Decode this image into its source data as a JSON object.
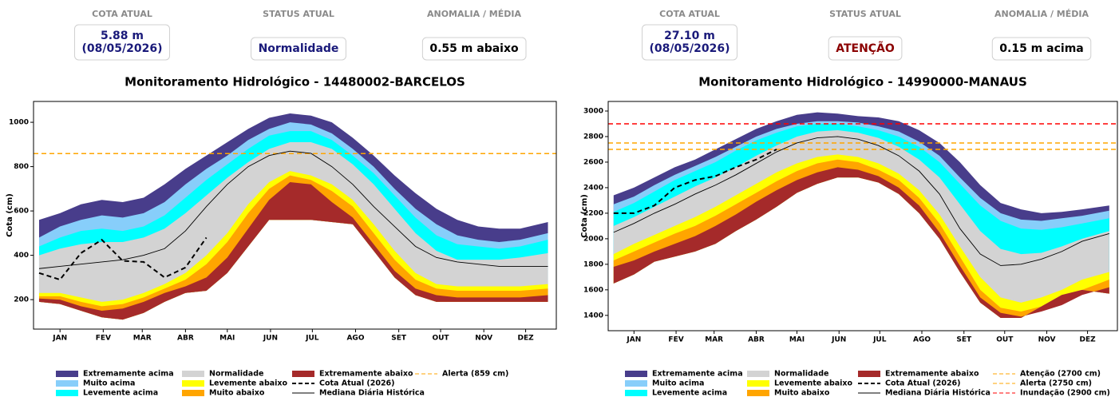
{
  "chart_data": [
    {
      "type": "area",
      "title": "Monitoramento Hidrológico - 14480002-BARCELOS",
      "cards": [
        {
          "label": "COTA ATUAL",
          "value": [
            "5.88 m",
            "(08/05/2026)"
          ],
          "color": "#1a1a7a"
        },
        {
          "label": "STATUS ATUAL",
          "value": [
            "Normalidade"
          ],
          "color": "#1a1a7a"
        },
        {
          "label": "ANOMALIA / MÉDIA",
          "value": [
            "0.55 m abaixo"
          ],
          "color": "#000000"
        }
      ],
      "ylabel": "Cota (cm)",
      "x": [
        0,
        15,
        30,
        45,
        60,
        75,
        90,
        105,
        120,
        135,
        150,
        165,
        180,
        195,
        210,
        225,
        240,
        255,
        270,
        285,
        300,
        315,
        330,
        345,
        365
      ],
      "xlim": [
        -4,
        371
      ],
      "xticks": [
        {
          "value": 15,
          "label": "JAN"
        },
        {
          "value": 46,
          "label": "FEV"
        },
        {
          "value": 74,
          "label": "MAR"
        },
        {
          "value": 105,
          "label": "ABR"
        },
        {
          "value": 135,
          "label": "MAI"
        },
        {
          "value": 166,
          "label": "JUN"
        },
        {
          "value": 196,
          "label": "JUL"
        },
        {
          "value": 227,
          "label": "AGO"
        },
        {
          "value": 258,
          "label": "SET"
        },
        {
          "value": 288,
          "label": "OUT"
        },
        {
          "value": 319,
          "label": "NOV"
        },
        {
          "value": 349,
          "label": "DEZ"
        }
      ],
      "ylim": [
        67,
        1094
      ],
      "yticks": [
        200,
        400,
        600,
        800,
        1000
      ],
      "min": [
        190,
        180,
        150,
        120,
        110,
        140,
        190,
        230,
        240,
        320,
        440,
        560,
        560,
        560,
        550,
        540,
        420,
        300,
        220,
        190,
        190,
        190,
        190,
        190,
        190
      ],
      "series": [
        {
          "name": "Extremamente acima",
          "color": "#483d8b",
          "values": [
            560,
            590,
            630,
            650,
            640,
            660,
            720,
            790,
            850,
            910,
            970,
            1020,
            1040,
            1030,
            1000,
            930,
            850,
            760,
            680,
            610,
            560,
            530,
            520,
            520,
            550
          ]
        },
        {
          "name": "Muito acima",
          "color": "#87cefa",
          "values": [
            480,
            530,
            560,
            580,
            570,
            590,
            640,
            720,
            790,
            850,
            920,
            970,
            1000,
            990,
            950,
            880,
            800,
            700,
            610,
            540,
            490,
            470,
            460,
            470,
            500
          ]
        },
        {
          "name": "Levemente acima",
          "color": "#00ffff",
          "values": [
            440,
            480,
            510,
            520,
            510,
            530,
            580,
            660,
            740,
            810,
            880,
            940,
            960,
            960,
            920,
            850,
            770,
            670,
            570,
            490,
            450,
            440,
            430,
            440,
            470
          ]
        },
        {
          "name": "Normalidade",
          "color": "#d3d3d3",
          "values": [
            400,
            430,
            450,
            460,
            460,
            480,
            520,
            590,
            670,
            750,
            820,
            880,
            910,
            910,
            880,
            810,
            720,
            610,
            500,
            420,
            380,
            380,
            380,
            390,
            410
          ]
        },
        {
          "name": "Levemente abaixo",
          "color": "#ffff00",
          "values": [
            230,
            230,
            210,
            190,
            200,
            230,
            270,
            320,
            400,
            500,
            630,
            730,
            780,
            760,
            720,
            650,
            540,
            420,
            320,
            270,
            260,
            260,
            260,
            260,
            270
          ]
        },
        {
          "name": "Muito abaixo",
          "color": "#ffa500",
          "values": [
            215,
            215,
            190,
            170,
            180,
            210,
            250,
            290,
            360,
            460,
            590,
            700,
            760,
            740,
            690,
            620,
            500,
            380,
            290,
            250,
            240,
            240,
            240,
            240,
            250
          ]
        },
        {
          "name": "Extremamente abaixo",
          "color": "#a52a2a",
          "values": [
            205,
            200,
            170,
            150,
            160,
            190,
            230,
            260,
            300,
            390,
            520,
            650,
            730,
            720,
            640,
            570,
            450,
            330,
            250,
            220,
            210,
            210,
            210,
            210,
            220
          ]
        }
      ],
      "lines": [
        {
          "name": "Cota Atual (2026)",
          "color": "#000000",
          "dash": true,
          "values": [
            320,
            290,
            410,
            470,
            375,
            370,
            300,
            345,
            480,
            null,
            null,
            null,
            null,
            null,
            null,
            null,
            null,
            null,
            null,
            null,
            null,
            null,
            null,
            null,
            null
          ]
        },
        {
          "name": "Mediana Diária Histórica",
          "color": "#000000",
          "dash": false,
          "values": [
            340,
            350,
            360,
            370,
            380,
            400,
            430,
            510,
            620,
            720,
            800,
            850,
            870,
            860,
            800,
            720,
            620,
            530,
            440,
            390,
            370,
            360,
            350,
            350,
            350
          ]
        }
      ],
      "thresholds": [
        {
          "name": "Alerta (859 cm)",
          "value": 859,
          "color": "#ffa500"
        }
      ]
    },
    {
      "type": "area",
      "title": "Monitoramento Hidrológico - 14990000-MANAUS",
      "cards": [
        {
          "label": "COTA ATUAL",
          "value": [
            "27.10 m",
            "(08/05/2026)"
          ],
          "color": "#1a1a7a"
        },
        {
          "label": "STATUS ATUAL",
          "value": [
            "ATENÇÃO"
          ],
          "color": "#8b0000"
        },
        {
          "label": "ANOMALIA / MÉDIA",
          "value": [
            "0.15 m acima"
          ],
          "color": "#000000"
        }
      ],
      "ylabel": "Cota (cm)",
      "x": [
        0,
        15,
        30,
        45,
        60,
        75,
        90,
        105,
        120,
        135,
        150,
        165,
        180,
        195,
        210,
        225,
        240,
        255,
        270,
        285,
        300,
        315,
        330,
        345,
        365
      ],
      "xlim": [
        -4,
        371
      ],
      "xticks": [
        {
          "value": 15,
          "label": "JAN"
        },
        {
          "value": 46,
          "label": "FEV"
        },
        {
          "value": 74,
          "label": "MAR"
        },
        {
          "value": 105,
          "label": "ABR"
        },
        {
          "value": 135,
          "label": "MAI"
        },
        {
          "value": 166,
          "label": "JUN"
        },
        {
          "value": 196,
          "label": "JUL"
        },
        {
          "value": 227,
          "label": "AGO"
        },
        {
          "value": 258,
          "label": "SET"
        },
        {
          "value": 288,
          "label": "OUT"
        },
        {
          "value": 319,
          "label": "NOV"
        },
        {
          "value": 349,
          "label": "DEZ"
        }
      ],
      "ylim": [
        1280,
        3075
      ],
      "yticks": [
        1400,
        1600,
        1800,
        2000,
        2200,
        2400,
        2600,
        2800,
        3000
      ],
      "min": [
        1650,
        1720,
        1820,
        1860,
        1900,
        1960,
        2060,
        2150,
        2250,
        2360,
        2430,
        2480,
        2480,
        2440,
        2350,
        2200,
        2000,
        1740,
        1500,
        1380,
        1380,
        1470,
        1560,
        1600,
        1570
      ],
      "series": [
        {
          "name": "Extremamente acima",
          "color": "#483d8b",
          "values": [
            2340,
            2400,
            2480,
            2560,
            2620,
            2700,
            2780,
            2860,
            2920,
            2970,
            2990,
            2980,
            2960,
            2950,
            2920,
            2850,
            2750,
            2600,
            2420,
            2280,
            2230,
            2200,
            2210,
            2230,
            2260
          ]
        },
        {
          "name": "Muito acima",
          "color": "#87cefa",
          "values": [
            2270,
            2330,
            2420,
            2500,
            2570,
            2640,
            2720,
            2800,
            2860,
            2900,
            2920,
            2920,
            2910,
            2880,
            2840,
            2760,
            2650,
            2480,
            2320,
            2200,
            2150,
            2140,
            2160,
            2180,
            2220
          ]
        },
        {
          "name": "Levemente acima",
          "color": "#00ffff",
          "values": [
            2210,
            2280,
            2370,
            2460,
            2530,
            2600,
            2690,
            2770,
            2830,
            2880,
            2900,
            2900,
            2880,
            2850,
            2800,
            2720,
            2600,
            2430,
            2260,
            2140,
            2080,
            2070,
            2090,
            2120,
            2160
          ]
        },
        {
          "name": "Normalidade",
          "color": "#d3d3d3",
          "values": [
            2100,
            2170,
            2250,
            2330,
            2410,
            2480,
            2560,
            2650,
            2730,
            2800,
            2840,
            2850,
            2830,
            2790,
            2720,
            2620,
            2480,
            2270,
            2060,
            1920,
            1880,
            1890,
            1940,
            2000,
            2060
          ]
        },
        {
          "name": "Levemente abaixo",
          "color": "#ffff00",
          "values": [
            1880,
            1960,
            2030,
            2100,
            2170,
            2250,
            2340,
            2430,
            2520,
            2590,
            2640,
            2660,
            2640,
            2590,
            2510,
            2380,
            2190,
            1940,
            1700,
            1540,
            1500,
            1540,
            1600,
            1680,
            1740
          ]
        },
        {
          "name": "Muito abaixo",
          "color": "#ffa500",
          "values": [
            1830,
            1900,
            1970,
            2040,
            2100,
            2180,
            2270,
            2360,
            2450,
            2530,
            2590,
            2620,
            2600,
            2540,
            2460,
            2320,
            2120,
            1860,
            1600,
            1460,
            1430,
            1470,
            1530,
            1600,
            1680
          ]
        },
        {
          "name": "Extremamente abaixo",
          "color": "#a52a2a",
          "values": [
            1780,
            1830,
            1900,
            1960,
            2020,
            2100,
            2190,
            2290,
            2380,
            2460,
            2520,
            2560,
            2540,
            2490,
            2400,
            2260,
            2050,
            1790,
            1540,
            1420,
            1390,
            1430,
            1480,
            1560,
            1620
          ]
        }
      ],
      "lines": [
        {
          "name": "Cota Atual (2026)",
          "color": "#000000",
          "dash": true,
          "values": [
            2200,
            2200,
            2260,
            2400,
            2460,
            2490,
            2560,
            2620,
            2700,
            null,
            null,
            null,
            null,
            null,
            null,
            null,
            null,
            null,
            null,
            null,
            null,
            null,
            null,
            null,
            null
          ]
        },
        {
          "name": "Mediana Diária Histórica",
          "color": "#000000",
          "dash": false,
          "values": [
            2050,
            2120,
            2200,
            2270,
            2350,
            2420,
            2500,
            2590,
            2680,
            2750,
            2790,
            2800,
            2780,
            2730,
            2650,
            2530,
            2350,
            2080,
            1880,
            1790,
            1800,
            1840,
            1900,
            1980,
            2040
          ]
        }
      ],
      "thresholds": [
        {
          "name": "Atenção (2700 cm)",
          "value": 2700,
          "color": "#ffa500"
        },
        {
          "name": "Alerta (2750 cm)",
          "value": 2750,
          "color": "#ffa500"
        },
        {
          "name": "Inundação (2900 cm)",
          "value": 2900,
          "color": "#ff0000"
        }
      ]
    }
  ]
}
